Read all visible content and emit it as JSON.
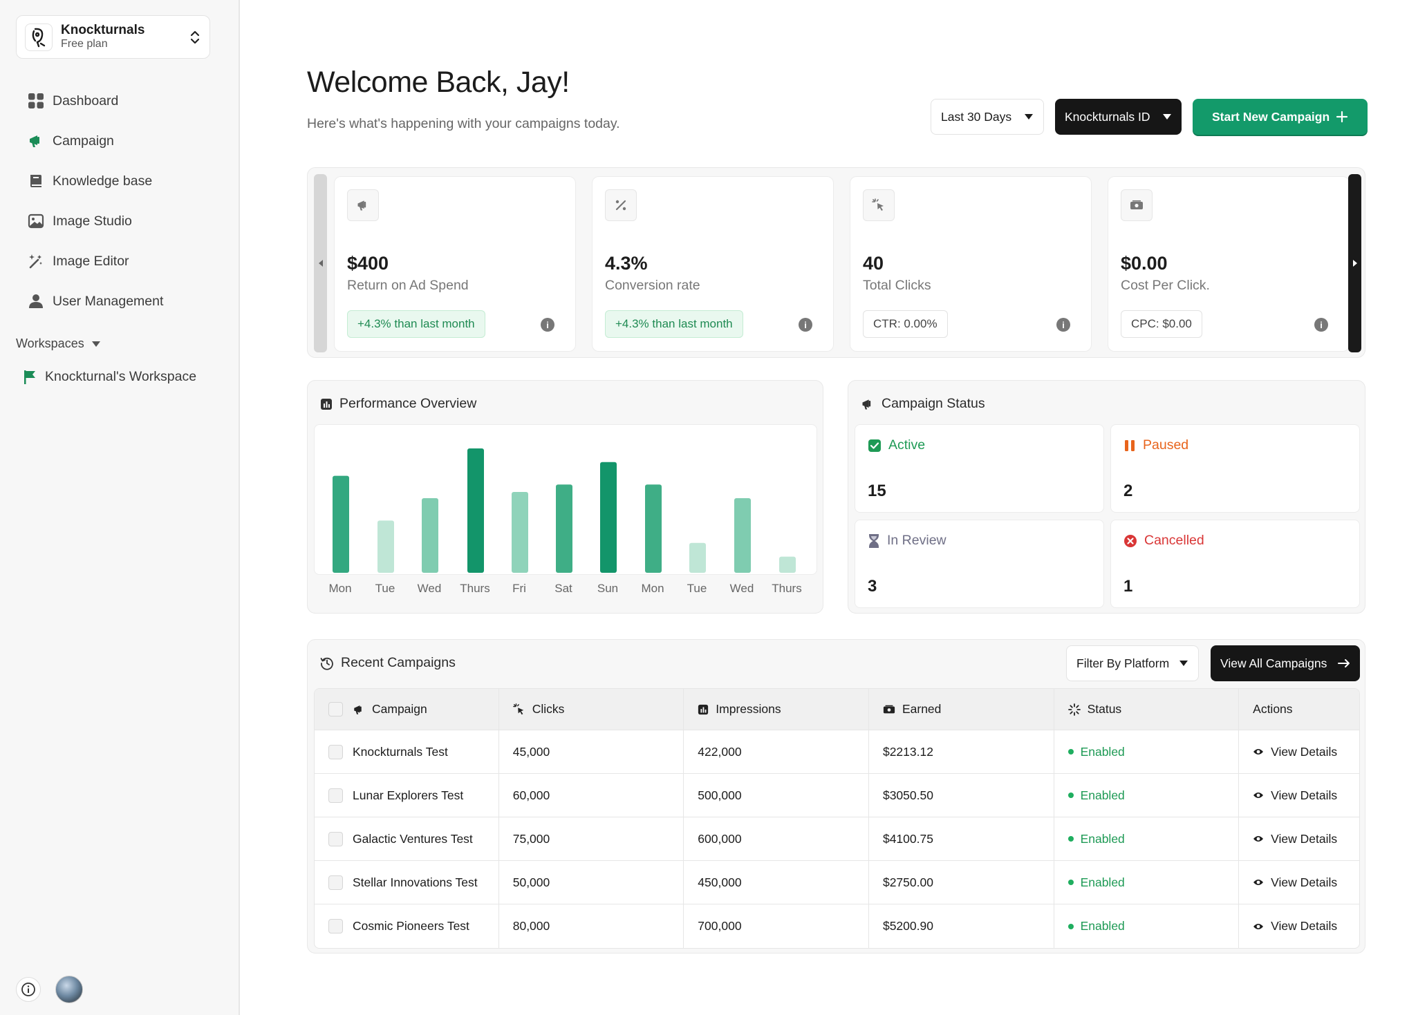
{
  "org": {
    "name": "Knockturnals",
    "plan": "Free plan"
  },
  "nav": [
    {
      "label": "Dashboard",
      "icon": "grid-icon"
    },
    {
      "label": "Campaign",
      "icon": "megaphone-icon"
    },
    {
      "label": "Knowledge base",
      "icon": "book-icon"
    },
    {
      "label": "Image Studio",
      "icon": "image-icon"
    },
    {
      "label": "Image Editor",
      "icon": "magic-wand-icon"
    },
    {
      "label": "User Management",
      "icon": "user-icon"
    }
  ],
  "workspaces": {
    "heading": "Workspaces",
    "items": [
      {
        "label": "Knockturnal's Workspace",
        "icon": "flag-icon"
      }
    ]
  },
  "header": {
    "title": "Welcome Back, Jay!",
    "subtitle": "Here's what's happening with your campaigns today.",
    "range_label": "Last 30 Days",
    "account_label": "Knockturnals ID",
    "cta_label": "Start New Campaign"
  },
  "kpis": [
    {
      "value": "$400",
      "label": "Return on Ad Spend",
      "badge": "+4.3% than last month",
      "badge_style": "green",
      "icon": "megaphone-icon"
    },
    {
      "value": "4.3%",
      "label": "Conversion rate",
      "badge": "+4.3% than last month",
      "badge_style": "green",
      "icon": "percent-icon"
    },
    {
      "value": "40",
      "label": "Total Clicks",
      "badge": "CTR: 0.00%",
      "badge_style": "gray",
      "icon": "cursor-click-icon"
    },
    {
      "value": "$0.00",
      "label": "Cost Per Click.",
      "badge": "CPC: $0.00",
      "badge_style": "gray",
      "icon": "cash-icon"
    }
  ],
  "performance": {
    "title": "Performance Overview"
  },
  "chart_data": {
    "type": "bar",
    "title": "Performance Overview",
    "categories": [
      "Mon",
      "Tue",
      "Wed",
      "Thurs",
      "Fri",
      "Sat",
      "Sun",
      "Mon",
      "Tue",
      "Wed",
      "Thurs"
    ],
    "values": [
      78,
      42,
      60,
      100,
      65,
      71,
      89,
      71,
      24,
      60,
      13
    ],
    "ylim": [
      0,
      100
    ],
    "grid": false,
    "colors": [
      "#33a880",
      "#bfe6d6",
      "#7fccb0",
      "#13956a",
      "#8fd3ba",
      "#3fae86",
      "#13956a",
      "#3fae86",
      "#bfe6d6",
      "#7fccb0",
      "#bfe6d6"
    ]
  },
  "campaign_status": {
    "title": "Campaign Status",
    "items": [
      {
        "label": "Active",
        "count": "15",
        "color": "#1e9a55"
      },
      {
        "label": "Paused",
        "count": "2",
        "color": "#e8641c"
      },
      {
        "label": "In Review",
        "count": "3",
        "color": "#6f6f86"
      },
      {
        "label": "Cancelled",
        "count": "1",
        "color": "#d93636"
      }
    ]
  },
  "recent": {
    "title": "Recent Campaigns",
    "filter_label": "Filter By Platform",
    "view_all_label": "View All Campaigns",
    "columns": [
      "Campaign",
      "Clicks",
      "Impressions",
      "Earned",
      "Status",
      "Actions"
    ],
    "rows": [
      {
        "campaign": "Knockturnals Test",
        "clicks": "45,000",
        "impressions": "422,000",
        "earned": "$2213.12",
        "status": "Enabled",
        "action": "View Details"
      },
      {
        "campaign": "Lunar Explorers Test",
        "clicks": "60,000",
        "impressions": "500,000",
        "earned": "$3050.50",
        "status": "Enabled",
        "action": "View Details"
      },
      {
        "campaign": "Galactic Ventures Test",
        "clicks": "75,000",
        "impressions": "600,000",
        "earned": "$4100.75",
        "status": "Enabled",
        "action": "View Details"
      },
      {
        "campaign": "Stellar Innovations Test",
        "clicks": "50,000",
        "impressions": "450,000",
        "earned": "$2750.00",
        "status": "Enabled",
        "action": "View Details"
      },
      {
        "campaign": "Cosmic Pioneers Test",
        "clicks": "80,000",
        "impressions": "700,000",
        "earned": "$5200.90",
        "status": "Enabled",
        "action": "View Details"
      }
    ]
  }
}
